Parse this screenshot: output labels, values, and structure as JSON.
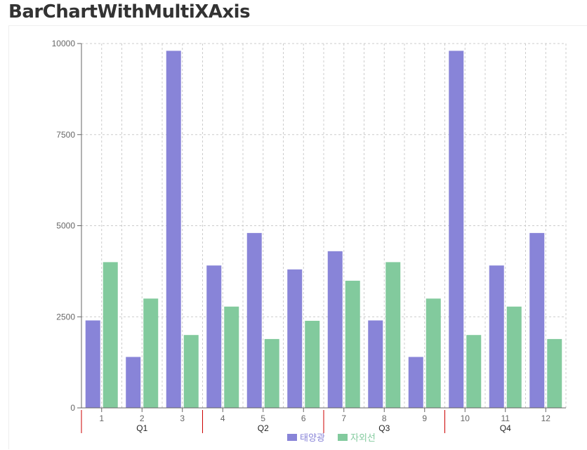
{
  "page": {
    "title": "BarChartWithMultiXAxis"
  },
  "chart_data": {
    "type": "bar",
    "title": "",
    "xlabel": "",
    "ylabel": "",
    "categories": [
      "1",
      "2",
      "3",
      "4",
      "5",
      "6",
      "7",
      "8",
      "9",
      "10",
      "11",
      "12"
    ],
    "secondary_categories": [
      {
        "label": "Q1",
        "span": [
          "1",
          "3"
        ]
      },
      {
        "label": "Q2",
        "span": [
          "4",
          "6"
        ]
      },
      {
        "label": "Q3",
        "span": [
          "7",
          "9"
        ]
      },
      {
        "label": "Q4",
        "span": [
          "10",
          "12"
        ]
      }
    ],
    "series": [
      {
        "name": "태양광",
        "color": "#8884d8",
        "values": [
          2400,
          1398,
          9800,
          3908,
          4800,
          3800,
          4300,
          2400,
          1398,
          9800,
          3908,
          4800
        ]
      },
      {
        "name": "자외선",
        "color": "#82ca9d",
        "values": [
          4000,
          3000,
          2000,
          2780,
          1890,
          2390,
          3490,
          4000,
          3000,
          2000,
          2780,
          1890
        ]
      }
    ],
    "ylim": [
      0,
      10000
    ],
    "yticks": [
      0,
      2500,
      5000,
      7500,
      10000
    ],
    "grid": true,
    "grid_style": "dashed",
    "legend_position": "bottom",
    "axis_color": "#666666",
    "quarter_divider_color": "#cc0000"
  }
}
